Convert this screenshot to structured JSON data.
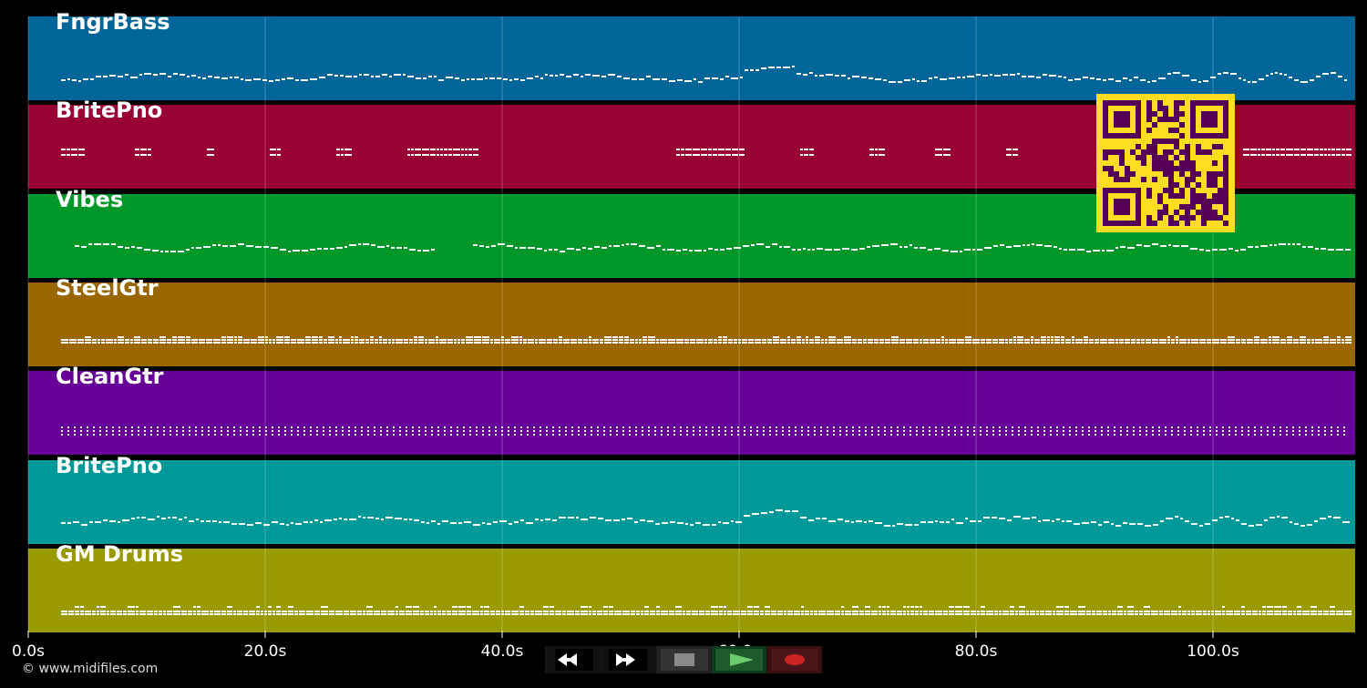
{
  "tracks": [
    {
      "name": "FngrBass",
      "color": "#00669a",
      "style": "bass"
    },
    {
      "name": "BritePno",
      "color": "#990033",
      "style": "chords"
    },
    {
      "name": "Vibes",
      "color": "#009929",
      "style": "melody"
    },
    {
      "name": "SteelGtr",
      "color": "#996600",
      "style": "dense"
    },
    {
      "name": "CleanGtr",
      "color": "#660099",
      "style": "arpeggio"
    },
    {
      "name": "BritePno",
      "color": "#009999",
      "style": "bass"
    },
    {
      "name": "GM Drums",
      "color": "#999900",
      "style": "drums"
    }
  ],
  "timeline": {
    "max_seconds": 112,
    "tick_seconds": [
      0,
      20,
      40,
      60,
      80,
      100
    ],
    "tick_labels": [
      "0.0s",
      "20.0s",
      "40.0s",
      "60.0s",
      "80.0s",
      "100.0s"
    ]
  },
  "transport": {
    "buttons": [
      {
        "name": "rewind-button",
        "icon": "rewind-icon"
      },
      {
        "name": "fast-forward-button",
        "icon": "fast-forward-icon"
      },
      {
        "name": "stop-button",
        "icon": "stop-icon"
      },
      {
        "name": "play-button",
        "icon": "play-icon"
      },
      {
        "name": "record-button",
        "icon": "record-icon"
      }
    ],
    "colors": {
      "stop": "#888888",
      "play": "#5cb85c",
      "record": "#cc2222"
    }
  },
  "copyright": "© www.midifiles.com",
  "qr": {
    "icon": "qr-code-icon",
    "fg": "#550055",
    "bg": "#ffdd22"
  }
}
